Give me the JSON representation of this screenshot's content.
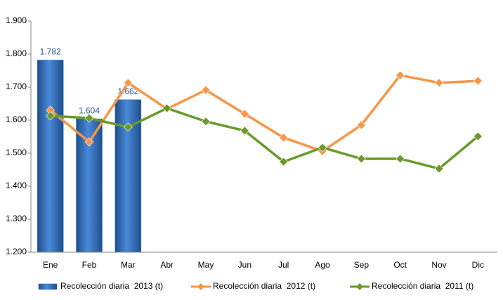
{
  "chart_data": {
    "type": "bar",
    "categories": [
      "Ene",
      "Feb",
      "Mar",
      "Abr",
      "May",
      "Jun",
      "Jul",
      "Ago",
      "Sep",
      "Oct",
      "Nov",
      "Dic"
    ],
    "series": [
      {
        "name": "Recolección diaria  2013 (t)",
        "type": "bar",
        "color": "#2e6fc0",
        "values": [
          1782,
          1604,
          1662,
          null,
          null,
          null,
          null,
          null,
          null,
          null,
          null,
          null
        ],
        "value_labels": [
          "1.782",
          "1.604",
          "1.662",
          null,
          null,
          null,
          null,
          null,
          null,
          null,
          null,
          null
        ]
      },
      {
        "name": "Recolección diaria  2012 (t)",
        "type": "line",
        "color": "#f79646",
        "values": [
          1630,
          1534,
          1713,
          1634,
          1691,
          1619,
          1547,
          1506,
          1585,
          1736,
          1713,
          1719
        ]
      },
      {
        "name": "Recolección diaria  2011 (t)",
        "type": "line",
        "color": "#6a9a2a",
        "values": [
          1613,
          1606,
          1579,
          1636,
          1596,
          1568,
          1474,
          1517,
          1483,
          1483,
          1453,
          1551
        ]
      }
    ],
    "ylim": [
      1200,
      1900
    ],
    "yticks": [
      {
        "value": 1200,
        "label": "1.200"
      },
      {
        "value": 1300,
        "label": "1.300"
      },
      {
        "value": 1400,
        "label": "1.400"
      },
      {
        "value": 1500,
        "label": "1.500"
      },
      {
        "value": 1600,
        "label": "1.600"
      },
      {
        "value": 1700,
        "label": "1.700"
      },
      {
        "value": 1800,
        "label": "1.800"
      },
      {
        "value": 1900,
        "label": "1.900"
      }
    ],
    "grid": false,
    "legend": "bottom"
  }
}
